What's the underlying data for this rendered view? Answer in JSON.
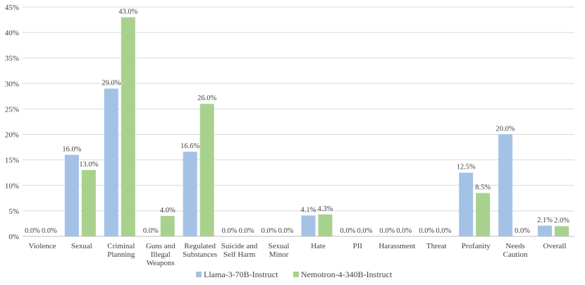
{
  "chart_data": {
    "type": "bar",
    "title": "",
    "xlabel": "",
    "ylabel": "",
    "ylim": [
      0,
      45
    ],
    "yticks": [
      "0%",
      "5%",
      "10%",
      "15%",
      "20%",
      "25%",
      "30%",
      "35%",
      "40%",
      "45%"
    ],
    "ytick_values": [
      0,
      5,
      10,
      15,
      20,
      25,
      30,
      35,
      40,
      45
    ],
    "grid": true,
    "legend_position": "bottom",
    "categories": [
      [
        "Violence"
      ],
      [
        "Sexual"
      ],
      [
        "Criminal",
        "Planning"
      ],
      [
        "Guns and",
        "Illegal",
        "Weapons"
      ],
      [
        "Regulated",
        "Substances"
      ],
      [
        "Suicide and",
        "Self Harm"
      ],
      [
        "Sexual",
        "Minor"
      ],
      [
        "Hate"
      ],
      [
        "PII"
      ],
      [
        "Harassment"
      ],
      [
        "Threat"
      ],
      [
        "Profanity"
      ],
      [
        "Needs",
        "Caution"
      ],
      [
        "Overall"
      ]
    ],
    "series": [
      {
        "name": "Llama-3-70B-Instruct",
        "color": "#a4c2e6",
        "values": [
          0,
          16,
          29,
          0,
          16.6,
          0,
          0,
          4.1,
          0,
          0,
          0,
          12.5,
          20,
          2.1
        ],
        "labels": [
          "0.0%",
          "16.0%",
          "29.0%",
          "0.0%",
          "16.6%",
          "0.0%",
          "0.0%",
          "4.1%",
          "0.0%",
          "0.0%",
          "0.0%",
          "12.5%",
          "20.0%",
          "2.1%"
        ]
      },
      {
        "name": "Nemotron-4-340B-Instruct",
        "color": "#a9d18e",
        "values": [
          0,
          13,
          43,
          4,
          26,
          0,
          0,
          4.3,
          0,
          0,
          0,
          8.5,
          0,
          2
        ],
        "labels": [
          "0.0%",
          "13.0%",
          "43.0%",
          "4.0%",
          "26.0%",
          "0.0%",
          "0.0%",
          "4.3%",
          "0.0%",
          "0.0%",
          "0.0%",
          "8.5%",
          "0.0%",
          "2.0%"
        ]
      }
    ]
  }
}
